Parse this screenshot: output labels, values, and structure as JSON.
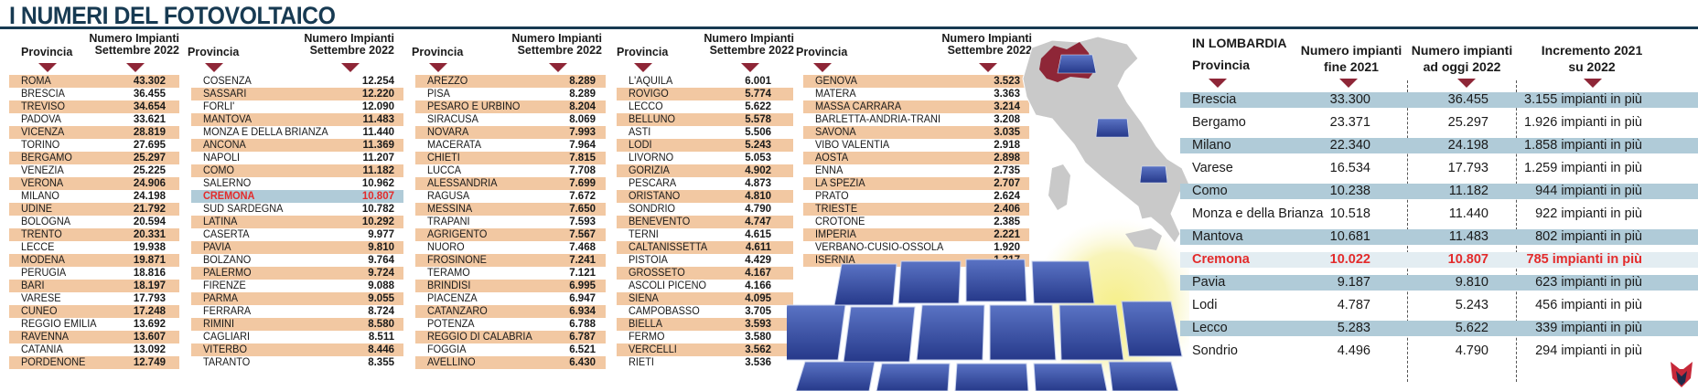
{
  "title": "I NUMERI DEL FOTOVOLTAICO",
  "national": {
    "header_provincia": "Provincia",
    "header_numero_line1": "Numero Impianti",
    "header_numero_line2": "Settembre 2022",
    "highlight": "CREMONA",
    "columns": [
      [
        [
          "ROMA",
          "43.302"
        ],
        [
          "BRESCIA",
          "36.455"
        ],
        [
          "TREVISO",
          "34.654"
        ],
        [
          "PADOVA",
          "33.621"
        ],
        [
          "VICENZA",
          "28.819"
        ],
        [
          "TORINO",
          "27.695"
        ],
        [
          "BERGAMO",
          "25.297"
        ],
        [
          "VENEZIA",
          "25.225"
        ],
        [
          "VERONA",
          "24.906"
        ],
        [
          "MILANO",
          "24.198"
        ],
        [
          "UDINE",
          "21.792"
        ],
        [
          "BOLOGNA",
          "20.594"
        ],
        [
          "TRENTO",
          "20.331"
        ],
        [
          "LECCE",
          "19.938"
        ],
        [
          "MODENA",
          "19.871"
        ],
        [
          "PERUGIA",
          "18.816"
        ],
        [
          "BARI",
          "18.197"
        ],
        [
          "VARESE",
          "17.793"
        ],
        [
          "CUNEO",
          "17.248"
        ],
        [
          "REGGIO EMILIA",
          "13.692"
        ],
        [
          "RAVENNA",
          "13.607"
        ],
        [
          "CATANIA",
          "13.092"
        ],
        [
          "PORDENONE",
          "12.749"
        ]
      ],
      [
        [
          "COSENZA",
          "12.254"
        ],
        [
          "SASSARI",
          "12.220"
        ],
        [
          "FORLI'",
          "12.090"
        ],
        [
          "MANTOVA",
          "11.483"
        ],
        [
          "MONZA E DELLA BRIANZA",
          "11.440"
        ],
        [
          "ANCONA",
          "11.369"
        ],
        [
          "NAPOLI",
          "11.207"
        ],
        [
          "COMO",
          "11.182"
        ],
        [
          "SALERNO",
          "10.962"
        ],
        [
          "CREMONA",
          "10.807"
        ],
        [
          "SUD SARDEGNA",
          "10.782"
        ],
        [
          "LATINA",
          "10.292"
        ],
        [
          "CASERTA",
          "9.977"
        ],
        [
          "PAVIA",
          "9.810"
        ],
        [
          "BOLZANO",
          "9.764"
        ],
        [
          "PALERMO",
          "9.724"
        ],
        [
          "FIRENZE",
          "9.088"
        ],
        [
          "PARMA",
          "9.055"
        ],
        [
          "FERRARA",
          "8.724"
        ],
        [
          "RIMINI",
          "8.580"
        ],
        [
          "CAGLIARI",
          "8.511"
        ],
        [
          "VITERBO",
          "8.446"
        ],
        [
          "TARANTO",
          "8.355"
        ]
      ],
      [
        [
          "AREZZO",
          "8.289"
        ],
        [
          "PISA",
          "8.289"
        ],
        [
          "PESARO E URBINO",
          "8.204"
        ],
        [
          "SIRACUSA",
          "8.069"
        ],
        [
          "NOVARA",
          "7.993"
        ],
        [
          "MACERATA",
          "7.964"
        ],
        [
          "CHIETI",
          "7.815"
        ],
        [
          "LUCCA",
          "7.708"
        ],
        [
          "ALESSANDRIA",
          "7.699"
        ],
        [
          "RAGUSA",
          "7.672"
        ],
        [
          "MESSINA",
          "7.650"
        ],
        [
          "TRAPANI",
          "7.593"
        ],
        [
          "AGRIGENTO",
          "7.567"
        ],
        [
          "NUORO",
          "7.468"
        ],
        [
          "FROSINONE",
          "7.241"
        ],
        [
          "TERAMO",
          "7.121"
        ],
        [
          "BRINDISI",
          "6.995"
        ],
        [
          "PIACENZA",
          "6.947"
        ],
        [
          "CATANZARO",
          "6.934"
        ],
        [
          "POTENZA",
          "6.788"
        ],
        [
          "REGGIO DI CALABRIA",
          "6.787"
        ],
        [
          "FOGGIA",
          "6.521"
        ],
        [
          "AVELLINO",
          "6.430"
        ]
      ],
      [
        [
          "L'AQUILA",
          "6.001"
        ],
        [
          "ROVIGO",
          "5.774"
        ],
        [
          "LECCO",
          "5.622"
        ],
        [
          "BELLUNO",
          "5.578"
        ],
        [
          "ASTI",
          "5.506"
        ],
        [
          "LODI",
          "5.243"
        ],
        [
          "LIVORNO",
          "5.053"
        ],
        [
          "GORIZIA",
          "4.902"
        ],
        [
          "PESCARA",
          "4.873"
        ],
        [
          "ORISTANO",
          "4.810"
        ],
        [
          "SONDRIO",
          "4.790"
        ],
        [
          "BENEVENTO",
          "4.747"
        ],
        [
          "TERNI",
          "4.615"
        ],
        [
          "CALTANISSETTA",
          "4.611"
        ],
        [
          "PISTOIA",
          "4.429"
        ],
        [
          "GROSSETO",
          "4.167"
        ],
        [
          "ASCOLI PICENO",
          "4.166"
        ],
        [
          "SIENA",
          "4.095"
        ],
        [
          "CAMPOBASSO",
          "3.705"
        ],
        [
          "BIELLA",
          "3.593"
        ],
        [
          "FERMO",
          "3.580"
        ],
        [
          "VERCELLI",
          "3.562"
        ],
        [
          "RIETI",
          "3.536"
        ]
      ],
      [
        [
          "GENOVA",
          "3.523"
        ],
        [
          "MATERA",
          "3.363"
        ],
        [
          "MASSA CARRARA",
          "3.214"
        ],
        [
          "BARLETTA-ANDRIA-TRANI",
          "3.208"
        ],
        [
          "SAVONA",
          "3.035"
        ],
        [
          "VIBO VALENTIA",
          "2.918"
        ],
        [
          "AOSTA",
          "2.898"
        ],
        [
          "ENNA",
          "2.735"
        ],
        [
          "LA SPEZIA",
          "2.707"
        ],
        [
          "PRATO",
          "2.624"
        ],
        [
          "TRIESTE",
          "2.406"
        ],
        [
          "CROTONE",
          "2.385"
        ],
        [
          "IMPERIA",
          "2.221"
        ],
        [
          "VERBANO-CUSIO-OSSOLA",
          "1.920"
        ],
        [
          "ISERNIA",
          "1.317"
        ]
      ]
    ]
  },
  "lombardia": {
    "title": "IN LOMBARDIA",
    "header_provincia": "Provincia",
    "header_fine2021": [
      "Numero impianti",
      "fine 2021"
    ],
    "header_oggi2022": [
      "Numero impianti",
      "ad oggi 2022"
    ],
    "header_incremento": [
      "Incremento 2021",
      "su 2022"
    ],
    "highlight": "Cremona",
    "rows": [
      [
        "Brescia",
        "33.300",
        "36.455",
        "3.155 impianti in più"
      ],
      [
        "Bergamo",
        "23.371",
        "25.297",
        "1.926 impianti in più"
      ],
      [
        "Milano",
        "22.340",
        "24.198",
        "1.858 impianti in più"
      ],
      [
        "Varese",
        "16.534",
        "17.793",
        "1.259 impianti in più"
      ],
      [
        "Como",
        "10.238",
        "11.182",
        "944 impianti in più"
      ],
      [
        "Monza e della Brianza",
        "10.518",
        "11.440",
        "922 impianti in più"
      ],
      [
        "Mantova",
        "10.681",
        "11.483",
        "802 impianti in più"
      ],
      [
        "Cremona",
        "10.022",
        "10.807",
        "785 impianti in più"
      ],
      [
        "Pavia",
        "9.187",
        "9.810",
        "623 impianti in più"
      ],
      [
        "Lodi",
        "4.787",
        "5.243",
        "456 impianti in più"
      ],
      [
        "Lecco",
        "5.283",
        "5.622",
        "339 impianti in più"
      ],
      [
        "Sondrio",
        "4.496",
        "4.790",
        "294 impianti in più"
      ]
    ]
  },
  "colors": {
    "title": "#173a52",
    "peach": "#f2c8a2",
    "blue_row": "#b0cbd8",
    "highlight_text": "#e32b2b",
    "lombardy_map": "#8e2637",
    "map_gray": "#c9c9c9",
    "panel_blue": "#2c4aa0"
  },
  "icons": [
    "italy-map",
    "solar-panel",
    "sun-glow",
    "publisher-logo"
  ]
}
